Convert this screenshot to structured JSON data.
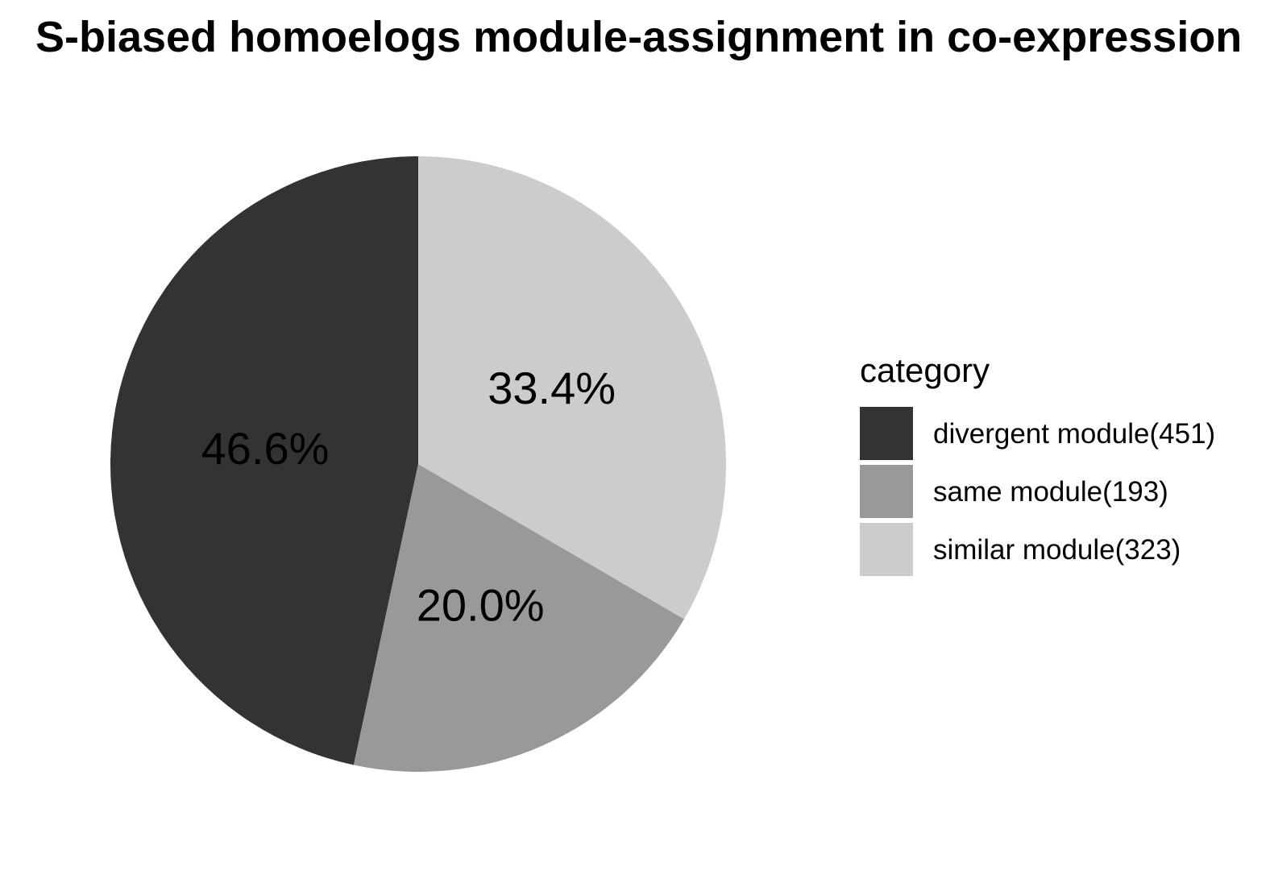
{
  "chart_data": {
    "type": "pie",
    "title": "S-biased homoelogs module-assignment in co-expression",
    "legend_title": "category",
    "legend_position": "right",
    "slices": [
      {
        "name": "divergent module(451)",
        "count": 451,
        "percent_label": "46.6%",
        "color": "#333333"
      },
      {
        "name": "same module(193)",
        "count": 193,
        "percent_label": "20.0%",
        "color": "#999999"
      },
      {
        "name": "similar module(323)",
        "count": 323,
        "percent_label": "33.4%",
        "color": "#cccccc"
      }
    ]
  }
}
